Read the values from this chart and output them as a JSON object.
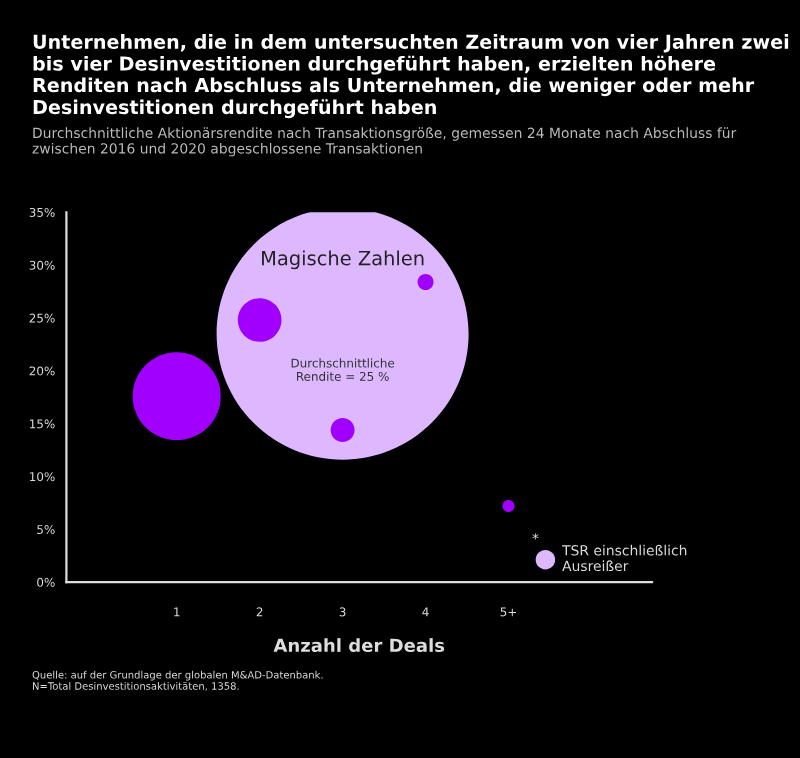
{
  "chart_data": {
    "type": "bubble",
    "title": "Unternehmen, die in dem untersuchten Zeitraum von vier Jahren zwei bis vier Desinvestitionen durchgeführt haben, erzielten höhere Renditen nach Abschluss als Unternehmen, die weniger oder mehr Desinvestitionen durchgeführt haben",
    "subtitle": "Durchschnittliche Aktionärsrendite nach Transaktionsgröße, gemessen 24 Monate nach Abschluss für zwischen 2016 und 2020 abgeschlossene Transaktionen",
    "xlabel": "Anzahl der Deals",
    "categories": [
      "1",
      "2",
      "3",
      "4",
      "5+"
    ],
    "series": [
      {
        "name": "TSR einschließlich Ausreißer",
        "color": "#ddb8ff",
        "x": [
          "3"
        ],
        "values": [
          23.5
        ],
        "sizes": [
          1
        ]
      },
      {
        "color": "#a100ff",
        "values": [
          17.6,
          24.8,
          14.4,
          28.4,
          7.2
        ],
        "sizes": [
          0.122,
          0.03,
          0.009,
          0.004,
          0.0023
        ]
      }
    ],
    "ylim": [
      0,
      35
    ],
    "yticks": [
      {
        "value": 0,
        "label": "0%"
      },
      {
        "value": 5,
        "label": "5%"
      },
      {
        "value": 10,
        "label": "10%"
      },
      {
        "value": 15,
        "label": "15%"
      },
      {
        "value": 20,
        "label": "20%"
      },
      {
        "value": 25,
        "label": "25%"
      },
      {
        "value": 30,
        "label": "30%"
      },
      {
        "value": 35,
        "label": "35%"
      }
    ],
    "legend": "bottom right",
    "annotations": [
      "Magische Zahlen",
      "Durchschnittliche\nRendite = 25 %",
      "*",
      "Quelle: auf der Grundlage der globalen M&AD-Datenbank.\nN=Total Desinvestitionsaktivitäten, 1358."
    ]
  }
}
